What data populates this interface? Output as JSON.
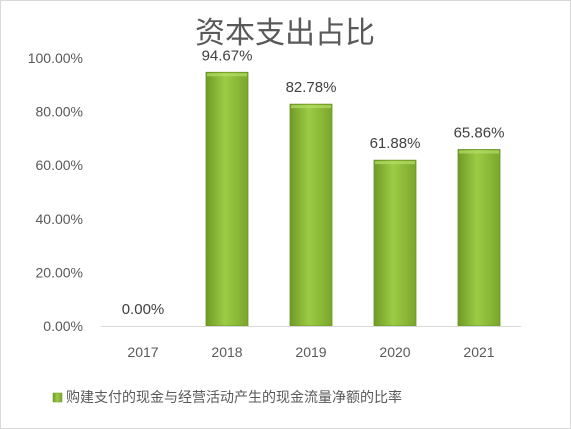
{
  "chart_data": {
    "type": "bar",
    "title": "资本支出占比",
    "categories": [
      "2017",
      "2018",
      "2019",
      "2020",
      "2021"
    ],
    "series": [
      {
        "name": "购建支付的现金与经营活动产生的现金流量净额的比率",
        "values": [
          0.0,
          94.67,
          82.78,
          61.88,
          65.86
        ],
        "value_labels": [
          "0.00%",
          "94.67%",
          "82.78%",
          "61.88%",
          "65.86%"
        ],
        "color": "#8db83a"
      }
    ],
    "ylim": [
      0,
      100
    ],
    "yticks": [
      0,
      20,
      40,
      60,
      80,
      100
    ],
    "ytick_labels": [
      "0.00%",
      "20.00%",
      "40.00%",
      "60.00%",
      "80.00%",
      "100.00%"
    ],
    "grid": false,
    "legend_position": "bottom"
  }
}
